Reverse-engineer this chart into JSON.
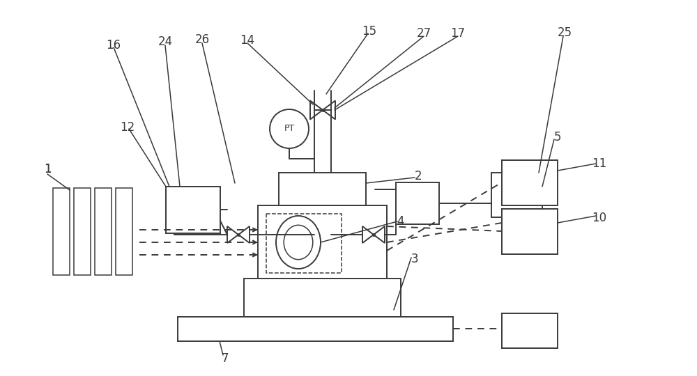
{
  "bg_color": "#ffffff",
  "line_color": "#3a3a3a",
  "lw": 1.4,
  "lw_thin": 1.1,
  "fig_w": 10.0,
  "fig_h": 5.4,
  "label_fs": 12,
  "pt_fs": 9
}
